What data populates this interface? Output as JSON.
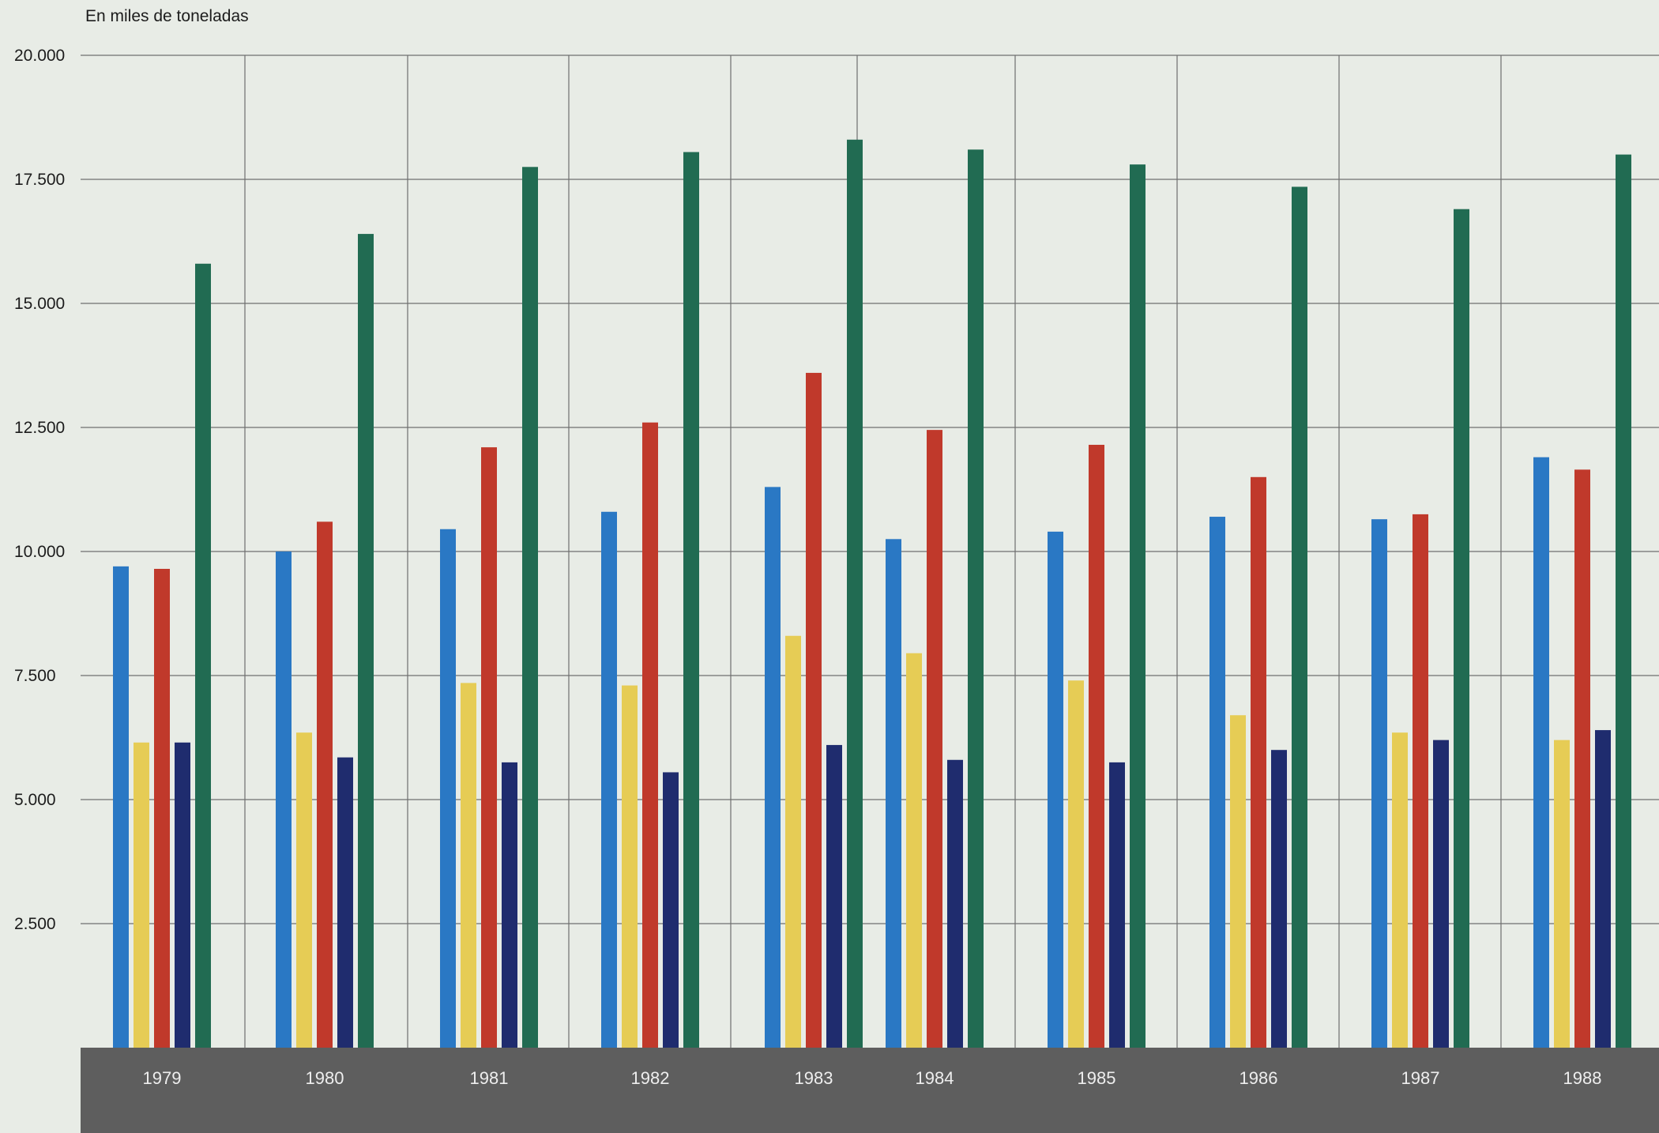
{
  "chart_data": {
    "type": "bar",
    "ylabel": "En miles de toneladas",
    "ylim": [
      0,
      20000
    ],
    "yticks": [
      "2.500",
      "5.000",
      "7.500",
      "10.000",
      "12.500",
      "15.000",
      "17.500",
      "20.000"
    ],
    "ytick_values": [
      2500,
      5000,
      7500,
      10000,
      12500,
      15000,
      17500,
      20000
    ],
    "categories": [
      "1979",
      "1980",
      "1981",
      "1982",
      "1983",
      "1984",
      "1985",
      "1986",
      "1987",
      "1988"
    ],
    "grid": true,
    "legend": "none",
    "series": [
      {
        "color": "#2a78c4",
        "values": [
          9700,
          10000,
          10450,
          10800,
          11300,
          10250,
          10400,
          10700,
          10650,
          11900
        ]
      },
      {
        "color": "#e6cc55",
        "values": [
          6150,
          6350,
          7350,
          7300,
          8300,
          7950,
          7400,
          6700,
          6350,
          6200
        ]
      },
      {
        "color": "#c0392b",
        "values": [
          9650,
          10600,
          12100,
          12600,
          13600,
          12450,
          12150,
          11500,
          10750,
          11650
        ]
      },
      {
        "color": "#1f2c6e",
        "values": [
          6150,
          5850,
          5750,
          5550,
          6100,
          5800,
          5750,
          6000,
          6200,
          6400
        ]
      },
      {
        "color": "#216b52",
        "values": [
          15800,
          16400,
          17750,
          18050,
          18300,
          18100,
          17800,
          17350,
          16900,
          18000
        ]
      }
    ]
  }
}
